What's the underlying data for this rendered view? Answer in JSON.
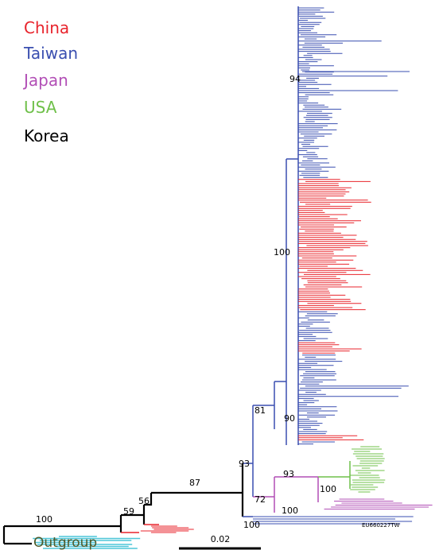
{
  "legend": [
    {
      "label": "China",
      "color": "#e8242c"
    },
    {
      "label": "Taiwan",
      "color": "#3a4fb0"
    },
    {
      "label": "Japan",
      "color": "#b24fb6"
    },
    {
      "label": "USA",
      "color": "#6fc04a"
    },
    {
      "label": "Korea",
      "color": "#000000"
    }
  ],
  "bootstrap": [
    100,
    59,
    56,
    87,
    93,
    81,
    72,
    94,
    100,
    90,
    93,
    100,
    100,
    100
  ],
  "outgroup_label": "Outgroup",
  "tip_label": "EU660227TW",
  "scale_bar": "0.02"
}
